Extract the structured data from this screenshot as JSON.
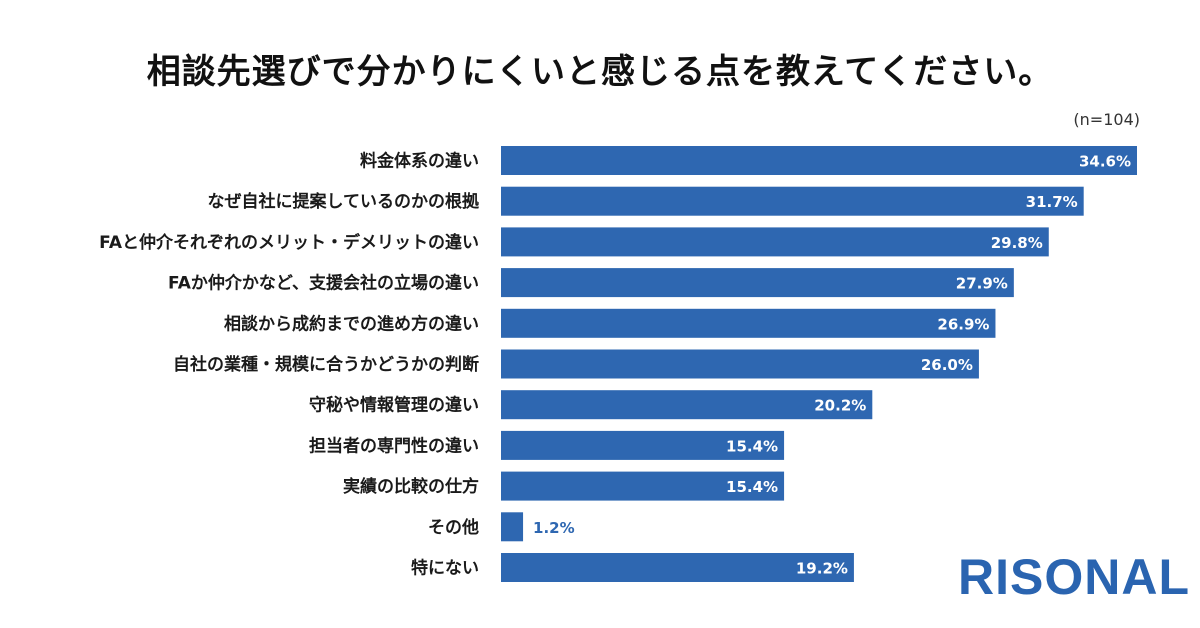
{
  "chart_data": {
    "type": "bar",
    "orientation": "horizontal",
    "title": "相談先選びで分かりにくいと感じる点を教えてください。",
    "sample_size": "(n=104)",
    "categories": [
      "料金体系の違い",
      "なぜ自社に提案しているのかの根拠",
      "FAと仲介それぞれのメリット・デメリットの違い",
      "FAか仲介かなど、支援会社の立場の違い",
      "相談から成約までの進め方の違い",
      "自社の業種・規模に合うかどうかの判断",
      "守秘や情報管理の違い",
      "担当者の専門性の違い",
      "実績の比較の仕方",
      "その他",
      "特にない"
    ],
    "values": [
      34.6,
      31.7,
      29.8,
      27.9,
      26.9,
      26.0,
      20.2,
      15.4,
      15.4,
      1.2,
      19.2
    ],
    "value_labels": [
      "34.6%",
      "31.7%",
      "29.8%",
      "27.9%",
      "26.9%",
      "26.0%",
      "20.2%",
      "15.4%",
      "15.4%",
      "1.2%",
      "19.2%"
    ],
    "xlim": [
      0,
      34.6
    ],
    "grid": false,
    "bar_color": "#2e67b1"
  },
  "brand": {
    "logo_text": "RISONAL",
    "color": "#2a64b0"
  }
}
